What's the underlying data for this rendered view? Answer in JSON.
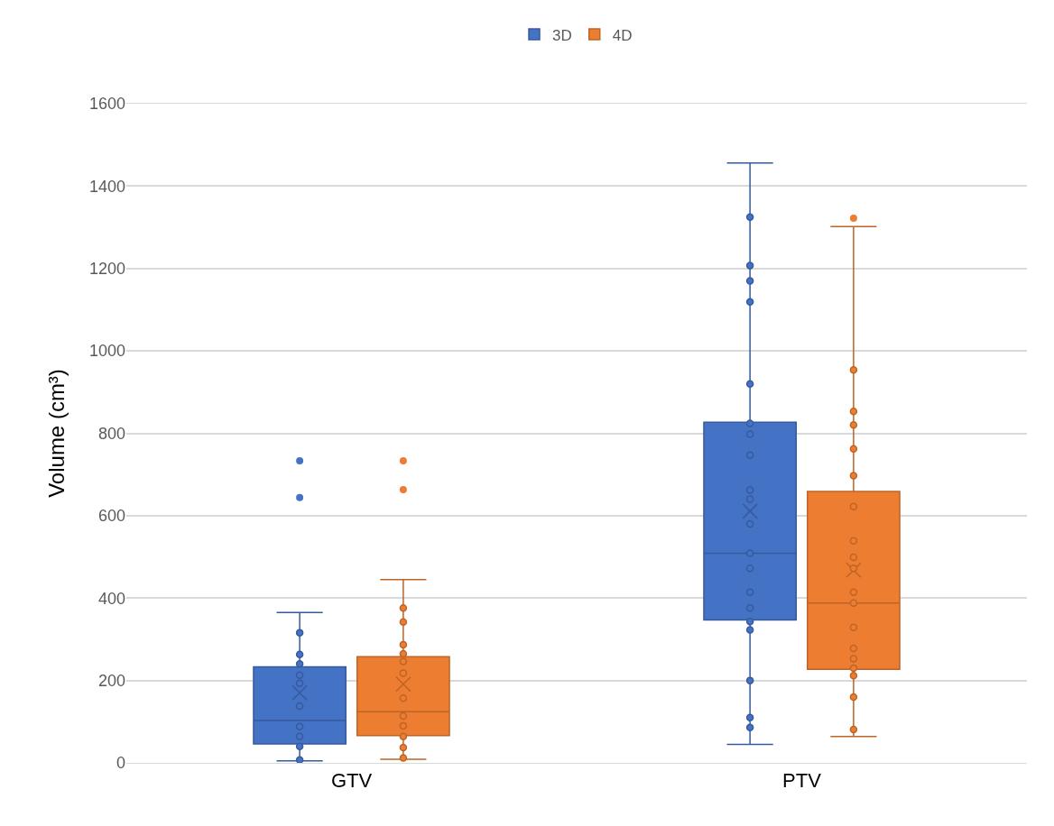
{
  "chart_data": {
    "type": "box",
    "ylabel": "Volume (cm³)",
    "categories": [
      "GTV",
      "PTV"
    ],
    "ylim": [
      0,
      1600
    ],
    "yticks": [
      0,
      200,
      400,
      600,
      800,
      1000,
      1200,
      1400,
      1600
    ],
    "grid": "y",
    "legend": "top",
    "marker": "circle",
    "series": [
      {
        "name": "3D",
        "color": "#4472c4",
        "boxes": [
          {
            "low": 5,
            "q1": 46,
            "median": 103,
            "q3": 233,
            "high": 365,
            "mean": 170,
            "outliers": [
              733,
              644
            ]
          },
          {
            "low": 45,
            "q1": 347,
            "median": 509,
            "q3": 827,
            "high": 1456,
            "mean": 611
          }
        ]
      },
      {
        "name": "4D",
        "color": "#ed7d31",
        "boxes": [
          {
            "low": 9,
            "q1": 66,
            "median": 124,
            "q3": 258,
            "high": 445,
            "mean": 191,
            "outliers": [
              733,
              663
            ]
          },
          {
            "low": 64,
            "q1": 227,
            "median": 388,
            "q3": 659,
            "high": 1302,
            "mean": 468,
            "outliers": [
              1322
            ]
          }
        ]
      },
      {
        "type": "scatter",
        "color": "#4472c4",
        "x": [
          "GTV",
          "GTV",
          "GTV",
          "GTV",
          "GTV",
          "GTV",
          "GTV",
          "GTV",
          "GTV",
          "GTV",
          "PTV",
          "PTV",
          "PTV",
          "PTV",
          "PTV",
          "PTV",
          "PTV",
          "PTV",
          "PTV",
          "PTV",
          "PTV",
          "PTV",
          "PTV",
          "PTV",
          "PTV",
          "PTV",
          "PTV",
          "PTV",
          "PTV",
          "PTV"
        ],
        "values": [
          316,
          263,
          240,
          213,
          193,
          138,
          88,
          64,
          40,
          7,
          1325,
          1207,
          1170,
          1119,
          920,
          824,
          798,
          747,
          662,
          640,
          580,
          509,
          472,
          414,
          376,
          343,
          323,
          200,
          110,
          86
        ]
      },
      {
        "type": "scatter",
        "color": "#ed7d31",
        "x": [
          "GTV",
          "GTV",
          "GTV",
          "GTV",
          "GTV",
          "GTV",
          "GTV",
          "GTV",
          "GTV",
          "GTV",
          "GTV",
          "GTV",
          "PTV",
          "PTV",
          "PTV",
          "PTV",
          "PTV",
          "PTV",
          "PTV",
          "PTV",
          "PTV",
          "PTV",
          "PTV",
          "PTV",
          "PTV",
          "PTV",
          "PTV",
          "PTV",
          "PTV",
          "PTV"
        ],
        "values": [
          376,
          342,
          287,
          265,
          246,
          218,
          157,
          114,
          90,
          64,
          37,
          12,
          954,
          853,
          820,
          762,
          697,
          622,
          539,
          499,
          472,
          414,
          388,
          329,
          278,
          253,
          230,
          212,
          160,
          81
        ]
      }
    ]
  }
}
